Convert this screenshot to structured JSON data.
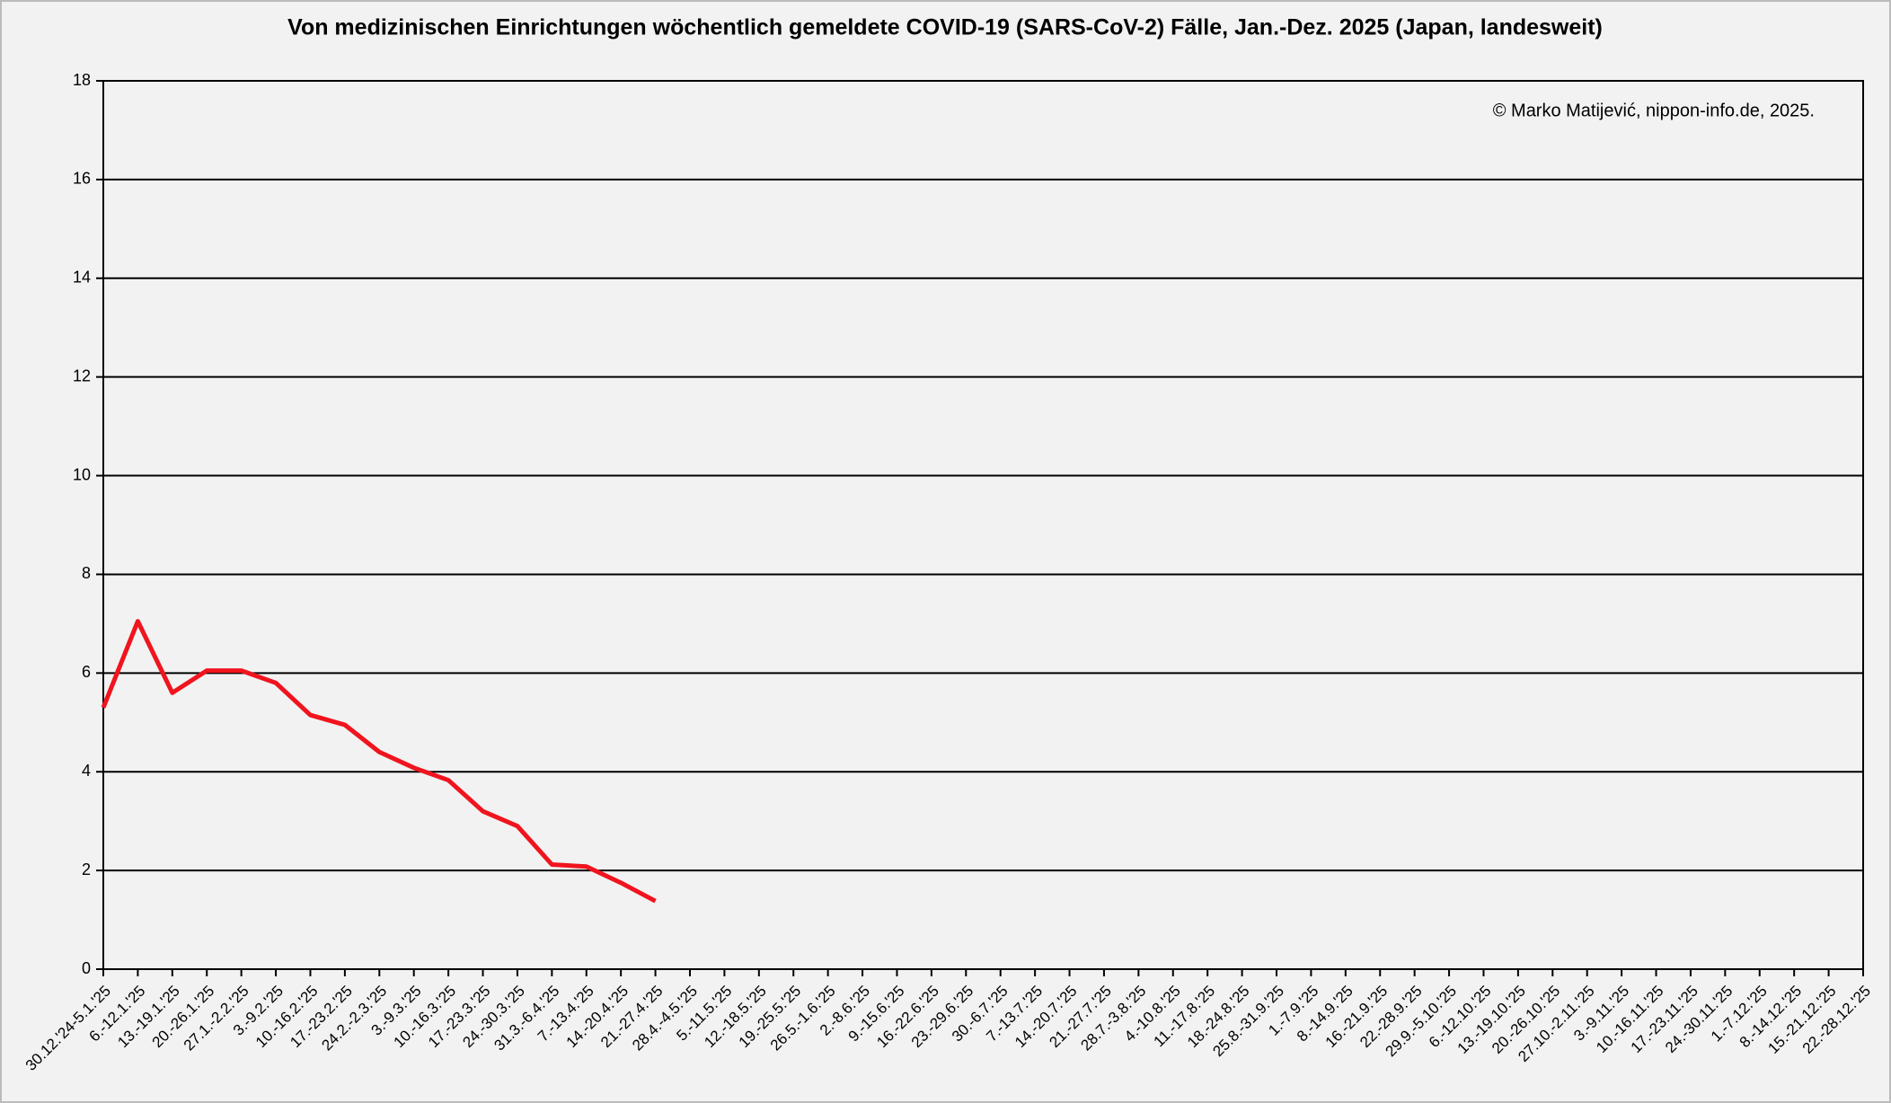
{
  "chart_data": {
    "type": "line",
    "title": "Von medizinischen Einrichtungen wöchentlich gemeldete COVID-19 (SARS-CoV-2) Fälle, Jan.-Dez. 2025 (Japan, landesweit)",
    "annotation": "© Marko Matijević, nippon-info.de, 2025.",
    "categories": [
      "30.12.'24-5.1.'25",
      "6.-12.1.'25",
      "13.-19.1.'25",
      "20.-26.1.'25",
      "27.1.-2.2.'25",
      "3.-9.2.'25",
      "10.-16.2.'25",
      "17.-23.2.'25",
      "24.2.-2.3.'25",
      "3.-9.3.'25",
      "10.-16.3.'25",
      "17.-23.3.'25",
      "24.-30.3.'25",
      "31.3.-6.4.'25",
      "7.-13.4.'25",
      "14.-20.4.'25",
      "21.-27.4.'25",
      "28.4.-4.5.'25",
      "5.-11.5.'25",
      "12.-18.5.'25",
      "19.-25.5.'25",
      "26.5.-1.6.'25",
      "2.-8.6.'25",
      "9.-15.6.'25",
      "16.-22.6.'25",
      "23.-29.6.'25",
      "30.-6.7.'25",
      "7.-13.7.'25",
      "14.-20.7.'25",
      "21.-27.7.'25",
      "28.7.-3.8.'25",
      "4.-10.8.'25",
      "11.-17.8.'25",
      "18.-24.8.'25",
      "25.8.-31.9.'25",
      "1.-7.9.'25",
      "8.-14.9.'25",
      "16.-21.9.'25",
      "22.-28.9.'25",
      "29.9.-5.10.'25",
      "6.-12.10.'25",
      "13.-19.10.'25",
      "20.-26.10.'25",
      "27.10.-2.11.'25",
      "3.-9.11.'25",
      "10.-16.11.'25",
      "17.-23.11.'25",
      "24.-30.11.'25",
      "1.-7.12.'25",
      "8.-14.12.'25",
      "15.-21.12.'25",
      "22.-28.12.'25"
    ],
    "series": [
      {
        "name": "COVID-19",
        "color": "#f0141e",
        "values": [
          5.3,
          7.05,
          5.6,
          6.05,
          6.05,
          5.8,
          5.15,
          4.95,
          4.4,
          4.08,
          3.83,
          3.2,
          2.9,
          2.12,
          2.08,
          1.75,
          1.38,
          null,
          null,
          null,
          null,
          null,
          null,
          null,
          null,
          null,
          null,
          null,
          null,
          null,
          null,
          null,
          null,
          null,
          null,
          null,
          null,
          null,
          null,
          null,
          null,
          null,
          null,
          null,
          null,
          null,
          null,
          null,
          null,
          null,
          null,
          null
        ]
      }
    ],
    "ylim": [
      0,
      18
    ],
    "yticks": [
      0,
      2,
      4,
      6,
      8,
      10,
      12,
      14,
      16,
      18
    ],
    "grid": true
  }
}
